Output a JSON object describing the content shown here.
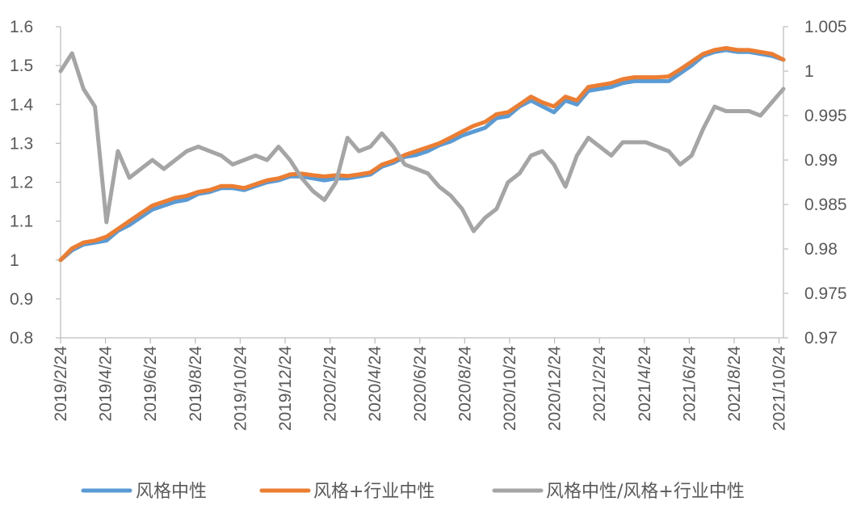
{
  "chart_data": {
    "type": "line",
    "title": "",
    "x_tick_labels": [
      "2019/2/24",
      "2019/4/24",
      "2019/6/24",
      "2019/8/24",
      "2019/10/24",
      "2019/12/24",
      "2020/2/24",
      "2020/4/24",
      "2020/6/24",
      "2020/8/24",
      "2020/10/24",
      "2020/12/24",
      "2021/2/24",
      "2021/4/24",
      "2021/6/24",
      "2021/8/24",
      "2021/10/24"
    ],
    "left_axis": {
      "min": 0.8,
      "max": 1.6,
      "step": 0.1,
      "tick_labels": [
        "0.8",
        "0.9",
        "1",
        "1.1",
        "1.2",
        "1.3",
        "1.4",
        "1.5",
        "1.6"
      ]
    },
    "right_axis": {
      "min": 0.97,
      "max": 1.005,
      "step": 0.005,
      "tick_labels": [
        "0.97",
        "0.975",
        "0.98",
        "0.985",
        "0.99",
        "0.995",
        "1",
        "1.005"
      ]
    },
    "grid": false,
    "legend_position": "bottom",
    "series": [
      {
        "name": "风格中性",
        "axis": "left",
        "color": "#5B9BD5",
        "values": [
          1.0,
          1.025,
          1.04,
          1.045,
          1.05,
          1.075,
          1.09,
          1.11,
          1.13,
          1.14,
          1.15,
          1.155,
          1.17,
          1.175,
          1.185,
          1.185,
          1.18,
          1.19,
          1.2,
          1.205,
          1.215,
          1.215,
          1.21,
          1.205,
          1.21,
          1.21,
          1.215,
          1.22,
          1.24,
          1.25,
          1.265,
          1.27,
          1.28,
          1.295,
          1.305,
          1.32,
          1.33,
          1.34,
          1.365,
          1.37,
          1.395,
          1.41,
          1.395,
          1.38,
          1.41,
          1.4,
          1.435,
          1.44,
          1.445,
          1.455,
          1.46,
          1.46,
          1.46,
          1.46,
          1.48,
          1.5,
          1.525,
          1.535,
          1.54,
          1.535,
          1.535,
          1.53,
          1.525,
          1.515
        ]
      },
      {
        "name": "风格+行业中性",
        "axis": "left",
        "color": "#ED7D31",
        "values": [
          1.0,
          1.03,
          1.045,
          1.05,
          1.06,
          1.08,
          1.1,
          1.12,
          1.14,
          1.15,
          1.16,
          1.165,
          1.175,
          1.18,
          1.19,
          1.19,
          1.185,
          1.195,
          1.205,
          1.21,
          1.22,
          1.222,
          1.218,
          1.215,
          1.218,
          1.216,
          1.22,
          1.225,
          1.245,
          1.255,
          1.27,
          1.28,
          1.29,
          1.3,
          1.315,
          1.33,
          1.345,
          1.355,
          1.375,
          1.38,
          1.4,
          1.42,
          1.405,
          1.395,
          1.42,
          1.41,
          1.445,
          1.45,
          1.455,
          1.465,
          1.47,
          1.47,
          1.47,
          1.472,
          1.49,
          1.51,
          1.53,
          1.54,
          1.545,
          1.54,
          1.54,
          1.535,
          1.53,
          1.515
        ]
      },
      {
        "name": "风格中性/风格+行业中性",
        "axis": "right",
        "color": "#A5A5A5",
        "values": [
          1.0,
          1.002,
          0.998,
          0.996,
          0.983,
          0.991,
          0.988,
          0.989,
          0.99,
          0.989,
          0.99,
          0.991,
          0.9915,
          0.991,
          0.9905,
          0.9895,
          0.99,
          0.9905,
          0.99,
          0.9915,
          0.99,
          0.988,
          0.9865,
          0.9855,
          0.9875,
          0.9925,
          0.991,
          0.9915,
          0.993,
          0.9915,
          0.9895,
          0.989,
          0.9885,
          0.987,
          0.986,
          0.9845,
          0.982,
          0.9835,
          0.9845,
          0.9875,
          0.9885,
          0.9905,
          0.991,
          0.9895,
          0.987,
          0.9905,
          0.9925,
          0.9915,
          0.9905,
          0.992,
          0.992,
          0.992,
          0.9915,
          0.991,
          0.9895,
          0.9905,
          0.9935,
          0.996,
          0.9955,
          0.9955,
          0.9955,
          0.995,
          0.9965,
          0.998
        ]
      }
    ]
  }
}
